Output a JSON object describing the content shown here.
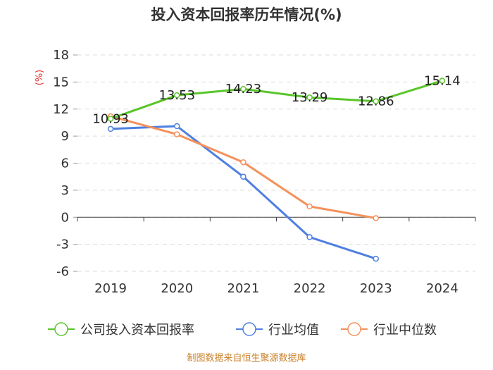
{
  "chart_data": {
    "type": "line",
    "title": "投入资本回报率历年情况(%)",
    "ylabel": "(%)",
    "xlabel": "",
    "categories": [
      "2019",
      "2020",
      "2021",
      "2022",
      "2023",
      "2024"
    ],
    "ylim": [
      -6,
      18
    ],
    "yticks": [
      18,
      15,
      12,
      9,
      6,
      3,
      0,
      -3,
      -6
    ],
    "grid": true,
    "legend_position": "bottom",
    "series": [
      {
        "name": "公司投入资本回报率",
        "color": "#5ac52a",
        "values": [
          10.93,
          13.53,
          14.23,
          13.29,
          12.86,
          15.14
        ],
        "labels": [
          "10.93",
          "13.53",
          "14.23",
          "13.29",
          "12.86",
          "15.14"
        ]
      },
      {
        "name": "行业均值",
        "color": "#4f7fe0",
        "values": [
          9.8,
          10.1,
          4.5,
          -2.2,
          -4.6,
          null
        ]
      },
      {
        "name": "行业中位数",
        "color": "#f5915a",
        "values": [
          11.2,
          9.2,
          6.1,
          1.2,
          -0.1,
          null
        ]
      }
    ],
    "source": "制图数据来自恒生聚源数据库"
  }
}
